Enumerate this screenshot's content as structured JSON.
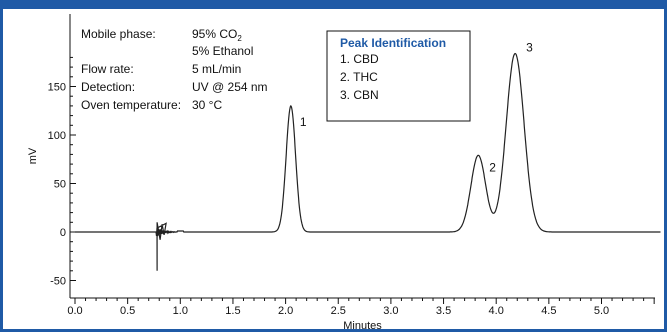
{
  "colors": {
    "frame": "#1f5aa6",
    "trace": "#222222",
    "legend_title": "#1f5aa6"
  },
  "conditions": [
    {
      "label": "Mobile phase:",
      "value": "95% CO",
      "subscript": "2"
    },
    {
      "label": "",
      "value": "5% Ethanol"
    },
    {
      "label": "Flow rate:",
      "value": "5 mL/min"
    },
    {
      "label": "Detection:",
      "value": "UV @ 254 nm"
    },
    {
      "label": "Oven temperature:",
      "value": "30 °C"
    }
  ],
  "legend": {
    "title": "Peak Identification",
    "items": [
      "1. CBD",
      "2. THC",
      "3. CBN"
    ]
  },
  "chart_data": {
    "type": "line",
    "xlabel": "Minutes",
    "ylabel": "mV",
    "xlim": [
      0,
      5.6
    ],
    "ylim": [
      -55,
      190
    ],
    "xticks": [
      0.0,
      0.5,
      1.0,
      1.5,
      2.0,
      2.5,
      3.0,
      3.5,
      4.0,
      4.5,
      5.0
    ],
    "xtick_labels": [
      "0.0",
      "0.5",
      "1.0",
      "1.5",
      "2.0",
      "2.5",
      "3.0",
      "3.5",
      "4.0",
      "4.5",
      "5.0"
    ],
    "yticks": [
      -50,
      0,
      50,
      100,
      150
    ],
    "ytick_labels": [
      "-50",
      "0",
      "50",
      "100",
      "150"
    ],
    "baseline": 0,
    "peaks": [
      {
        "label": "1",
        "rt": 2.05,
        "height": 130,
        "width": 0.045
      },
      {
        "label": "2",
        "rt": 3.83,
        "height": 79,
        "width": 0.07
      },
      {
        "label": "3",
        "rt": 4.18,
        "height": 184,
        "width": 0.085
      }
    ],
    "injection_disturbance": {
      "x": 0.78,
      "min": -40,
      "max": 10
    },
    "grid": false
  }
}
